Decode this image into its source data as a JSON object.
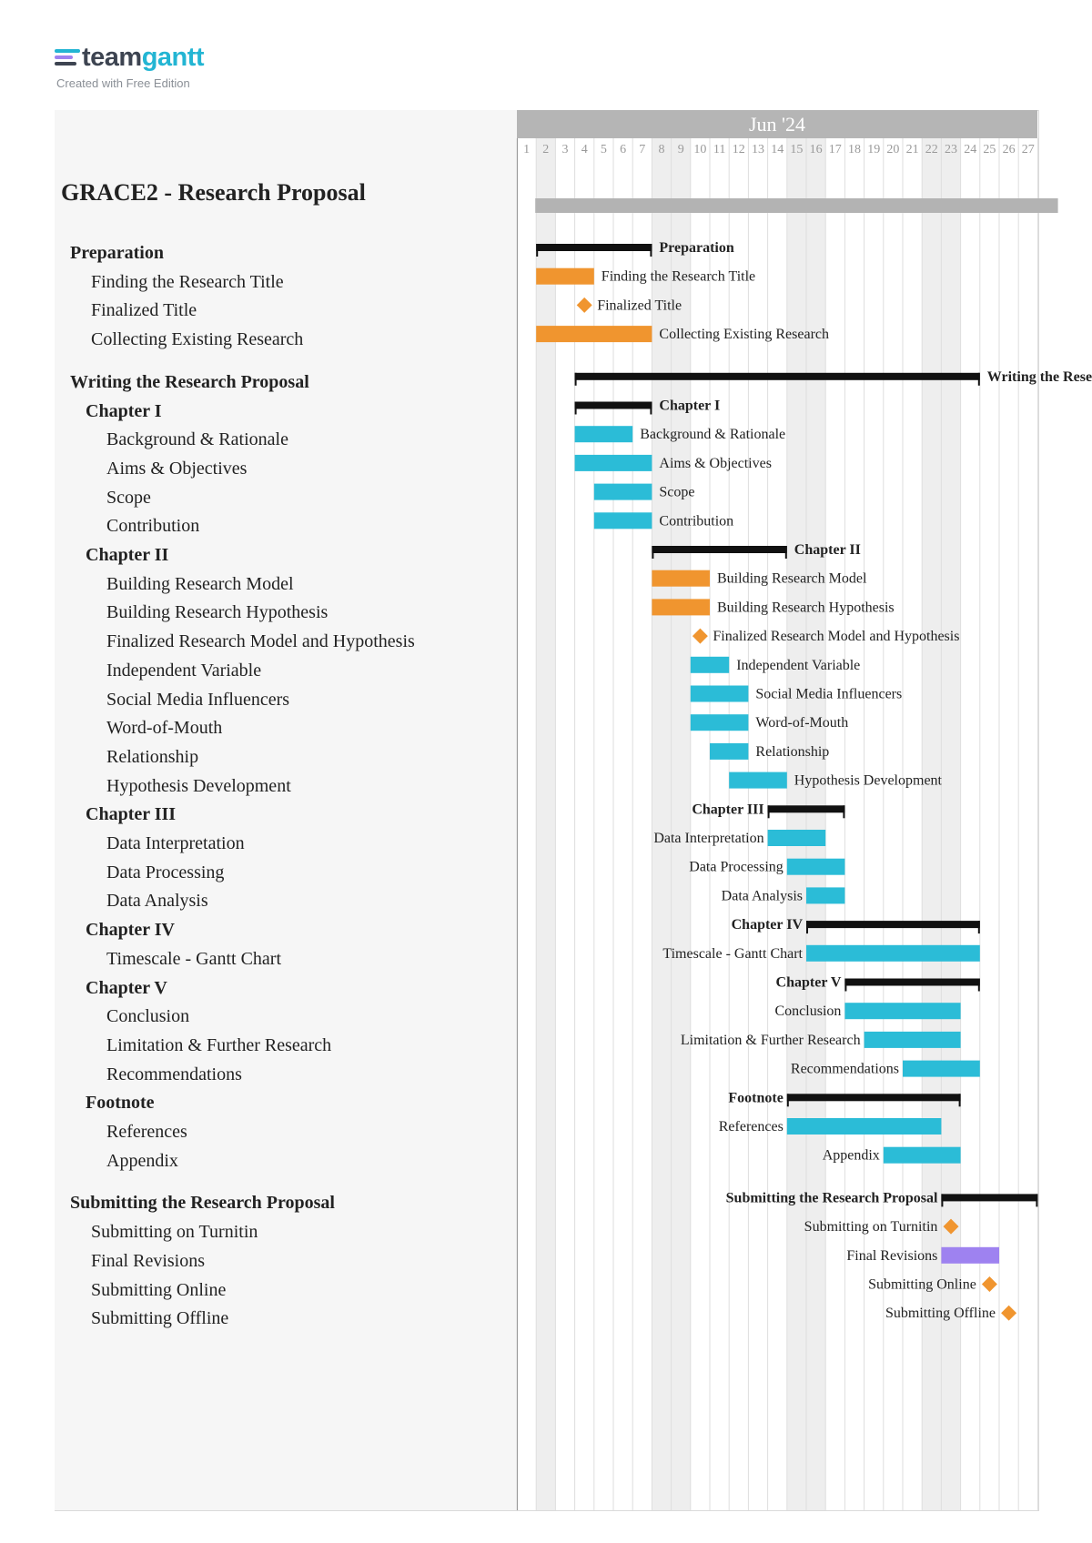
{
  "logo": {
    "word_a": "team",
    "word_b": "gantt",
    "subtitle": "Created with Free Edition",
    "stripe_colors": [
      "#23b5d3",
      "#9e82f0",
      "#3d4451"
    ]
  },
  "project": {
    "title": "GRACE2 - Research Proposal"
  },
  "timeline": {
    "month_label": "Jun '24",
    "days": [
      "1",
      "2",
      "3",
      "4",
      "5",
      "6",
      "7",
      "8",
      "9",
      "10",
      "11",
      "12",
      "13",
      "14",
      "15",
      "16",
      "17",
      "18",
      "19",
      "20",
      "21",
      "22",
      "23",
      "24",
      "25",
      "26",
      "27"
    ],
    "weekend_days": [
      1,
      7,
      8,
      14,
      15,
      21,
      22
    ]
  },
  "colors": {
    "orange": "#f0952f",
    "cyan": "#2bbcd7",
    "purple": "#9e82f0",
    "black": "#111111",
    "project_bar": "#b3b3b3"
  },
  "tasks": [
    {
      "label": "Preparation",
      "level": 1,
      "type": "group",
      "start": 1,
      "end": 6
    },
    {
      "label": "Finding the Research Title",
      "level": 2,
      "type": "task",
      "color": "orange",
      "start": 1,
      "end": 3
    },
    {
      "label": "Finalized Title",
      "level": 2,
      "type": "milestone",
      "color": "orange",
      "start": 3,
      "end": 3
    },
    {
      "label": "Collecting Existing Research",
      "level": 2,
      "type": "task",
      "color": "orange",
      "start": 1,
      "end": 6
    },
    {
      "label": "Writing the Research Proposal",
      "level": 1,
      "type": "group",
      "start": 3,
      "end": 23
    },
    {
      "label": "Chapter I",
      "level": 2,
      "type": "group",
      "start": 3,
      "end": 6
    },
    {
      "label": "Background & Rationale",
      "level": 3,
      "type": "task",
      "color": "cyan",
      "start": 3,
      "end": 5
    },
    {
      "label": "Aims & Objectives",
      "level": 3,
      "type": "task",
      "color": "cyan",
      "start": 3,
      "end": 6
    },
    {
      "label": "Scope",
      "level": 3,
      "type": "task",
      "color": "cyan",
      "start": 4,
      "end": 6
    },
    {
      "label": "Contribution",
      "level": 3,
      "type": "task",
      "color": "cyan",
      "start": 4,
      "end": 6
    },
    {
      "label": "Chapter II",
      "level": 2,
      "type": "group",
      "start": 7,
      "end": 13
    },
    {
      "label": "Building Research Model",
      "level": 3,
      "type": "task",
      "color": "orange",
      "start": 7,
      "end": 9
    },
    {
      "label": "Building Research Hypothesis",
      "level": 3,
      "type": "task",
      "color": "orange",
      "start": 7,
      "end": 9
    },
    {
      "label": "Finalized Research Model and Hypothesis",
      "level": 3,
      "type": "milestone",
      "color": "orange",
      "start": 9,
      "end": 9
    },
    {
      "label": "Independent Variable",
      "level": 3,
      "type": "task",
      "color": "cyan",
      "start": 9,
      "end": 10
    },
    {
      "label": "Social Media Influencers",
      "level": 3,
      "type": "task",
      "color": "cyan",
      "start": 9,
      "end": 11
    },
    {
      "label": "Word-of-Mouth",
      "level": 3,
      "type": "task",
      "color": "cyan",
      "start": 9,
      "end": 11
    },
    {
      "label": "Relationship",
      "level": 3,
      "type": "task",
      "color": "cyan",
      "start": 10,
      "end": 11
    },
    {
      "label": "Hypothesis Development",
      "level": 3,
      "type": "task",
      "color": "cyan",
      "start": 11,
      "end": 13
    },
    {
      "label": "Chapter III",
      "level": 2,
      "type": "group",
      "start": 13,
      "end": 16
    },
    {
      "label": "Data Interpretation",
      "level": 3,
      "type": "task",
      "color": "cyan",
      "start": 13,
      "end": 15
    },
    {
      "label": "Data Processing",
      "level": 3,
      "type": "task",
      "color": "cyan",
      "start": 14,
      "end": 16
    },
    {
      "label": "Data Analysis",
      "level": 3,
      "type": "task",
      "color": "cyan",
      "start": 15,
      "end": 16
    },
    {
      "label": "Chapter IV",
      "level": 2,
      "type": "group",
      "start": 15,
      "end": 23
    },
    {
      "label": "Timescale - Gantt Chart",
      "level": 3,
      "type": "task",
      "color": "cyan",
      "start": 15,
      "end": 23
    },
    {
      "label": "Chapter V",
      "level": 2,
      "type": "group",
      "start": 17,
      "end": 23
    },
    {
      "label": "Conclusion",
      "level": 3,
      "type": "task",
      "color": "cyan",
      "start": 17,
      "end": 22
    },
    {
      "label": "Limitation & Further Research",
      "level": 3,
      "type": "task",
      "color": "cyan",
      "start": 18,
      "end": 22
    },
    {
      "label": "Recommendations",
      "level": 3,
      "type": "task",
      "color": "cyan",
      "start": 20,
      "end": 23
    },
    {
      "label": "Footnote",
      "level": 2,
      "type": "group",
      "start": 14,
      "end": 22
    },
    {
      "label": "References",
      "level": 3,
      "type": "task",
      "color": "cyan",
      "start": 14,
      "end": 21
    },
    {
      "label": "Appendix",
      "level": 3,
      "type": "task",
      "color": "cyan",
      "start": 19,
      "end": 22
    },
    {
      "label": "Submitting the Research Proposal",
      "level": 1,
      "type": "group",
      "start": 22,
      "end": 26
    },
    {
      "label": "Submitting on Turnitin",
      "level": 2,
      "type": "milestone",
      "color": "orange",
      "start": 22,
      "end": 22
    },
    {
      "label": "Final Revisions",
      "level": 2,
      "type": "task",
      "color": "purple",
      "start": 22,
      "end": 24
    },
    {
      "label": "Submitting Online",
      "level": 2,
      "type": "milestone",
      "color": "orange",
      "start": 24,
      "end": 24
    },
    {
      "label": "Submitting Offline",
      "level": 2,
      "type": "milestone",
      "color": "orange",
      "start": 25,
      "end": 25
    }
  ],
  "chart_data": {
    "type": "gantt",
    "title": "GRACE2 - Research Proposal",
    "x_unit": "Jun '24 day",
    "xlim": [
      1,
      27
    ],
    "source": "tasks"
  }
}
